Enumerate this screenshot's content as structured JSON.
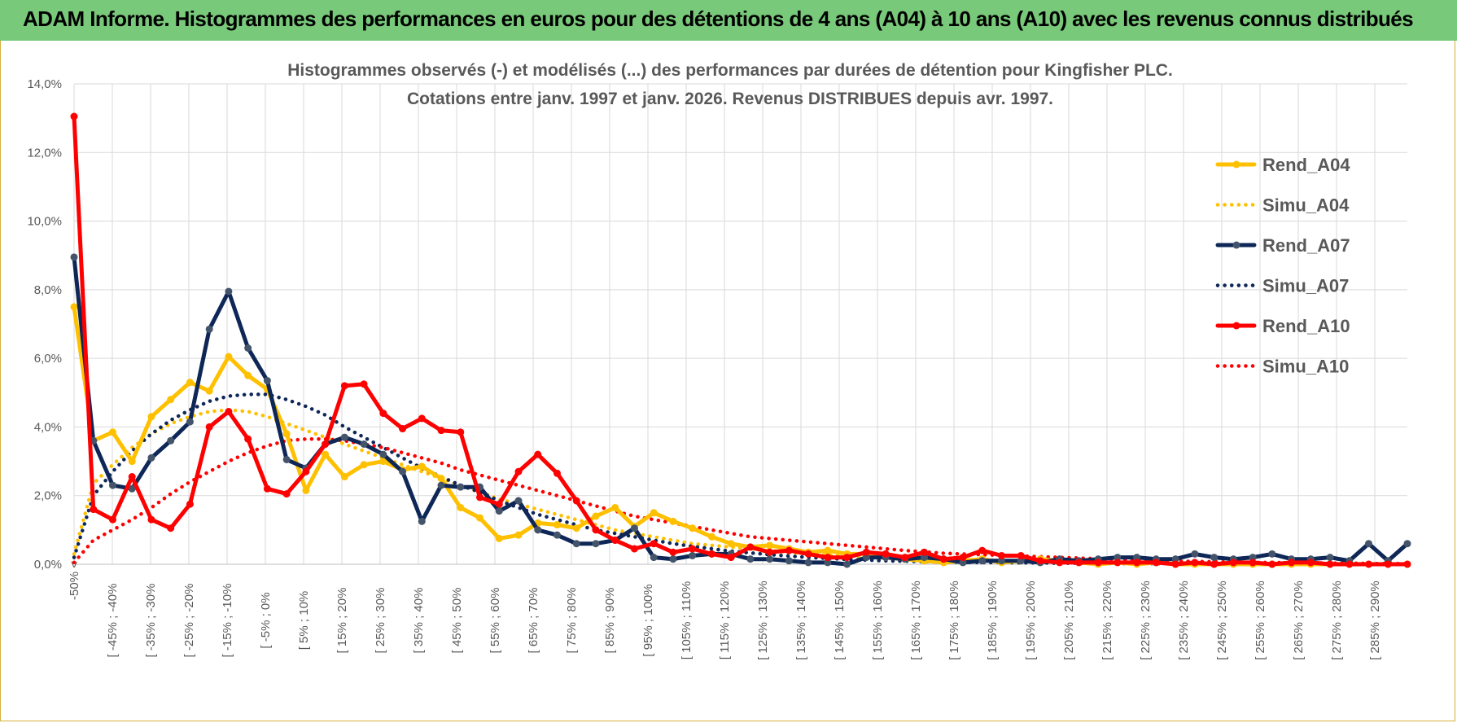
{
  "header": {
    "title": "ADAM Informe. Histogrammes des performances en euros pour des détentions de 4 ans (A04) à 10 ans (A10) avec les revenus connus distribués"
  },
  "chart_data": {
    "type": "line",
    "title_line1": "Histogrammes observés (-) et modélisés (...) des performances par durées de détention pour Kingfisher PLC.",
    "title_line2": "Cotations entre janv. 1997 et janv. 2026. Revenus DISTRIBUES depuis avr. 1997.",
    "ylim": [
      0,
      14
    ],
    "yticks": [
      0,
      2,
      4,
      6,
      8,
      10,
      12,
      14
    ],
    "ytick_labels": [
      "0,0%",
      "2,0%",
      "4,0%",
      "6,0%",
      "8,0%",
      "10,0%",
      "12,0%",
      "14,0%"
    ],
    "xtick_labels": [
      "-50% <",
      "[ -45% ; -40%",
      "[ -35% ; -30%",
      "[ -25% ; -20%",
      "[ -15% ; -10%",
      "[ -5% ; 0%",
      "[ 5% ; 10%",
      "[ 15% ; 20%",
      "[ 25% ; 30%",
      "[ 35% ; 40%",
      "[ 45% ; 50%",
      "[ 55% ; 60%",
      "[ 65% ; 70%",
      "[ 75% ; 80%",
      "[ 85% ; 90%",
      "[ 95% ; 100%",
      "[ 105% ; 110%",
      "[ 115% ; 120%",
      "[ 125% ; 130%",
      "[ 135% ; 140%",
      "[ 145% ; 150%",
      "[ 155% ; 160%",
      "[ 165% ; 170%",
      "[ 175% ; 180%",
      "[ 185% ; 190%",
      "[ 195% ; 200%",
      "[ 205% ; 210%",
      "[ 215% ; 220%",
      "[ 225% ; 230%",
      "[ 235% ; 240%",
      "[ 245% ; 250%",
      "[ 255% ; 260%",
      "[ 265% ; 270%",
      "[ 275% ; 280%",
      "[ 285% ; 290%"
    ],
    "n_categories": 70,
    "legend_position": "right",
    "series": [
      {
        "name": "Rend_A04",
        "color": "#ffc000",
        "style": "solid",
        "markers": true,
        "values": [
          7.5,
          3.6,
          3.85,
          3.0,
          4.3,
          4.8,
          5.3,
          5.05,
          6.05,
          5.5,
          5.1,
          3.8,
          2.15,
          3.2,
          2.55,
          2.9,
          3.0,
          2.75,
          2.85,
          2.5,
          1.65,
          1.35,
          0.75,
          0.85,
          1.2,
          1.15,
          1.05,
          1.4,
          1.65,
          1.1,
          1.5,
          1.25,
          1.05,
          0.8,
          0.6,
          0.5,
          0.55,
          0.45,
          0.35,
          0.4,
          0.3,
          0.3,
          0.2,
          0.15,
          0.1,
          0.05,
          0.1,
          0.15,
          0.05,
          0.1,
          0.15,
          0.1,
          0.05,
          0.0,
          0.05,
          0.0,
          0.05,
          0.0,
          0.0,
          0.0,
          0.0,
          0.0,
          0.0,
          0.0,
          0.0,
          0.0,
          0.0,
          0.0,
          0.0,
          0.0
        ]
      },
      {
        "name": "Simu_A04",
        "color": "#ffc000",
        "style": "dotted",
        "markers": false,
        "values": [
          0.3,
          2.35,
          2.9,
          3.4,
          3.8,
          4.1,
          4.3,
          4.45,
          4.5,
          4.45,
          4.3,
          4.1,
          3.9,
          3.7,
          3.5,
          3.3,
          3.1,
          2.9,
          2.7,
          2.5,
          2.3,
          2.1,
          1.9,
          1.75,
          1.6,
          1.45,
          1.3,
          1.15,
          1.0,
          0.9,
          0.8,
          0.7,
          0.6,
          0.55,
          0.5,
          0.45,
          0.4,
          0.35,
          0.3,
          0.27,
          0.24,
          0.21,
          0.18,
          0.16,
          0.14,
          0.12,
          0.11,
          0.1,
          0.09,
          0.08,
          0.07,
          0.06,
          0.05,
          0.05,
          0.04,
          0.04,
          0.03,
          0.03,
          0.03,
          0.02,
          0.02,
          0.02,
          0.02,
          0.02,
          0.01,
          0.01,
          0.01,
          0.01,
          0.01,
          0.01
        ]
      },
      {
        "name": "Rend_A07",
        "color": "#0e2757",
        "style": "solid",
        "markers": true,
        "values": [
          8.95,
          3.6,
          2.3,
          2.2,
          3.1,
          3.6,
          4.15,
          6.85,
          7.95,
          6.3,
          5.35,
          3.05,
          2.8,
          3.5,
          3.7,
          3.5,
          3.2,
          2.7,
          1.25,
          2.3,
          2.25,
          2.25,
          1.55,
          1.85,
          1.0,
          0.85,
          0.6,
          0.6,
          0.7,
          1.05,
          0.2,
          0.15,
          0.25,
          0.3,
          0.3,
          0.15,
          0.15,
          0.1,
          0.05,
          0.05,
          0.0,
          0.2,
          0.2,
          0.15,
          0.2,
          0.15,
          0.05,
          0.1,
          0.1,
          0.1,
          0.05,
          0.15,
          0.1,
          0.15,
          0.2,
          0.2,
          0.15,
          0.15,
          0.3,
          0.2,
          0.15,
          0.2,
          0.3,
          0.15,
          0.15,
          0.2,
          0.1,
          0.6,
          0.1,
          0.6
        ]
      },
      {
        "name": "Simu_A07",
        "color": "#0e2757",
        "style": "dotted",
        "markers": false,
        "values": [
          0.2,
          2.0,
          2.7,
          3.3,
          3.8,
          4.2,
          4.5,
          4.75,
          4.9,
          4.95,
          4.95,
          4.8,
          4.6,
          4.35,
          4.0,
          3.7,
          3.4,
          3.1,
          2.8,
          2.55,
          2.3,
          2.1,
          1.85,
          1.65,
          1.45,
          1.3,
          1.15,
          1.0,
          0.9,
          0.8,
          0.7,
          0.6,
          0.52,
          0.45,
          0.38,
          0.33,
          0.28,
          0.24,
          0.2,
          0.17,
          0.14,
          0.12,
          0.1,
          0.09,
          0.08,
          0.07,
          0.06,
          0.05,
          0.05,
          0.04,
          0.04,
          0.03,
          0.03,
          0.03,
          0.02,
          0.02,
          0.02,
          0.02,
          0.02,
          0.01,
          0.01,
          0.01,
          0.01,
          0.01,
          0.01,
          0.01,
          0.01,
          0.01,
          0.01,
          0.01
        ]
      },
      {
        "name": "Rend_A10",
        "color": "#ff0000",
        "style": "solid",
        "markers": true,
        "values": [
          13.05,
          1.6,
          1.3,
          2.55,
          1.3,
          1.05,
          1.75,
          4.0,
          4.45,
          3.65,
          2.2,
          2.05,
          2.7,
          3.5,
          5.2,
          5.25,
          4.4,
          3.95,
          4.25,
          3.9,
          3.85,
          1.95,
          1.75,
          2.7,
          3.2,
          2.65,
          1.85,
          1.0,
          0.7,
          0.45,
          0.6,
          0.35,
          0.45,
          0.3,
          0.2,
          0.5,
          0.35,
          0.4,
          0.3,
          0.2,
          0.2,
          0.35,
          0.3,
          0.2,
          0.35,
          0.15,
          0.2,
          0.4,
          0.25,
          0.25,
          0.1,
          0.05,
          0.05,
          0.05,
          0.05,
          0.05,
          0.05,
          0.0,
          0.05,
          0.0,
          0.05,
          0.05,
          0.0,
          0.05,
          0.05,
          0.0,
          0.0,
          0.0,
          0.0,
          0.0
        ]
      },
      {
        "name": "Simu_A10",
        "color": "#ff0000",
        "style": "dotted",
        "markers": false,
        "values": [
          0.05,
          0.7,
          1.0,
          1.3,
          1.65,
          2.05,
          2.4,
          2.7,
          3.0,
          3.25,
          3.45,
          3.6,
          3.65,
          3.65,
          3.6,
          3.5,
          3.4,
          3.25,
          3.1,
          2.95,
          2.75,
          2.6,
          2.45,
          2.3,
          2.15,
          2.0,
          1.85,
          1.7,
          1.55,
          1.4,
          1.3,
          1.2,
          1.1,
          1.0,
          0.9,
          0.8,
          0.75,
          0.7,
          0.65,
          0.6,
          0.55,
          0.5,
          0.45,
          0.4,
          0.36,
          0.32,
          0.3,
          0.28,
          0.26,
          0.24,
          0.22,
          0.2,
          0.18,
          0.16,
          0.14,
          0.12,
          0.1,
          0.09,
          0.08,
          0.07,
          0.06,
          0.05,
          0.05,
          0.04,
          0.04,
          0.03,
          0.03,
          0.02,
          0.02,
          0.02
        ]
      }
    ]
  }
}
